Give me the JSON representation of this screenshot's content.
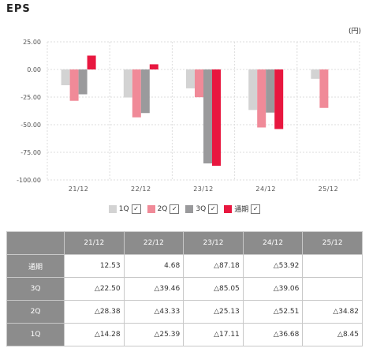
{
  "title": "EPS",
  "colors": {
    "1Q": "#d3d3d3",
    "2Q": "#f08a98",
    "3Q": "#9a9a9c",
    "full": "#e8173f"
  },
  "chart_data": {
    "type": "bar",
    "unit": "(円)",
    "categories": [
      "21/12",
      "22/12",
      "23/12",
      "24/12",
      "25/12"
    ],
    "yticks": [
      "25.00",
      "0.00",
      "-25.00",
      "-50.00",
      "-75.00",
      "-100.00"
    ],
    "ylim": [
      -100,
      25
    ],
    "grid": true,
    "legend_position": "bottom",
    "series": [
      {
        "name": "1Q",
        "values": [
          -14.28,
          -25.39,
          -17.11,
          -36.68,
          -8.45
        ]
      },
      {
        "name": "2Q",
        "values": [
          -28.38,
          -43.33,
          -25.13,
          -52.51,
          -34.82
        ]
      },
      {
        "name": "3Q",
        "values": [
          -22.5,
          -39.46,
          -85.05,
          -39.06,
          null
        ]
      },
      {
        "name": "通期",
        "values": [
          12.53,
          4.68,
          -87.18,
          -53.92,
          null
        ]
      }
    ]
  },
  "legend": [
    {
      "label": "1Q",
      "check": "✓"
    },
    {
      "label": "2Q",
      "check": "✓"
    },
    {
      "label": "3Q",
      "check": "✓"
    },
    {
      "label": "通期",
      "check": "✓"
    }
  ],
  "table": {
    "headers": [
      "",
      "21/12",
      "22/12",
      "23/12",
      "24/12",
      "25/12"
    ],
    "rows": [
      {
        "label": "通期",
        "cells": [
          "12.53",
          "4.68",
          "△87.18",
          "△53.92",
          ""
        ]
      },
      {
        "label": "3Q",
        "cells": [
          "△22.50",
          "△39.46",
          "△85.05",
          "△39.06",
          ""
        ]
      },
      {
        "label": "2Q",
        "cells": [
          "△28.38",
          "△43.33",
          "△25.13",
          "△52.51",
          "△34.82"
        ]
      },
      {
        "label": "1Q",
        "cells": [
          "△14.28",
          "△25.39",
          "△17.11",
          "△36.68",
          "△8.45"
        ]
      }
    ]
  }
}
